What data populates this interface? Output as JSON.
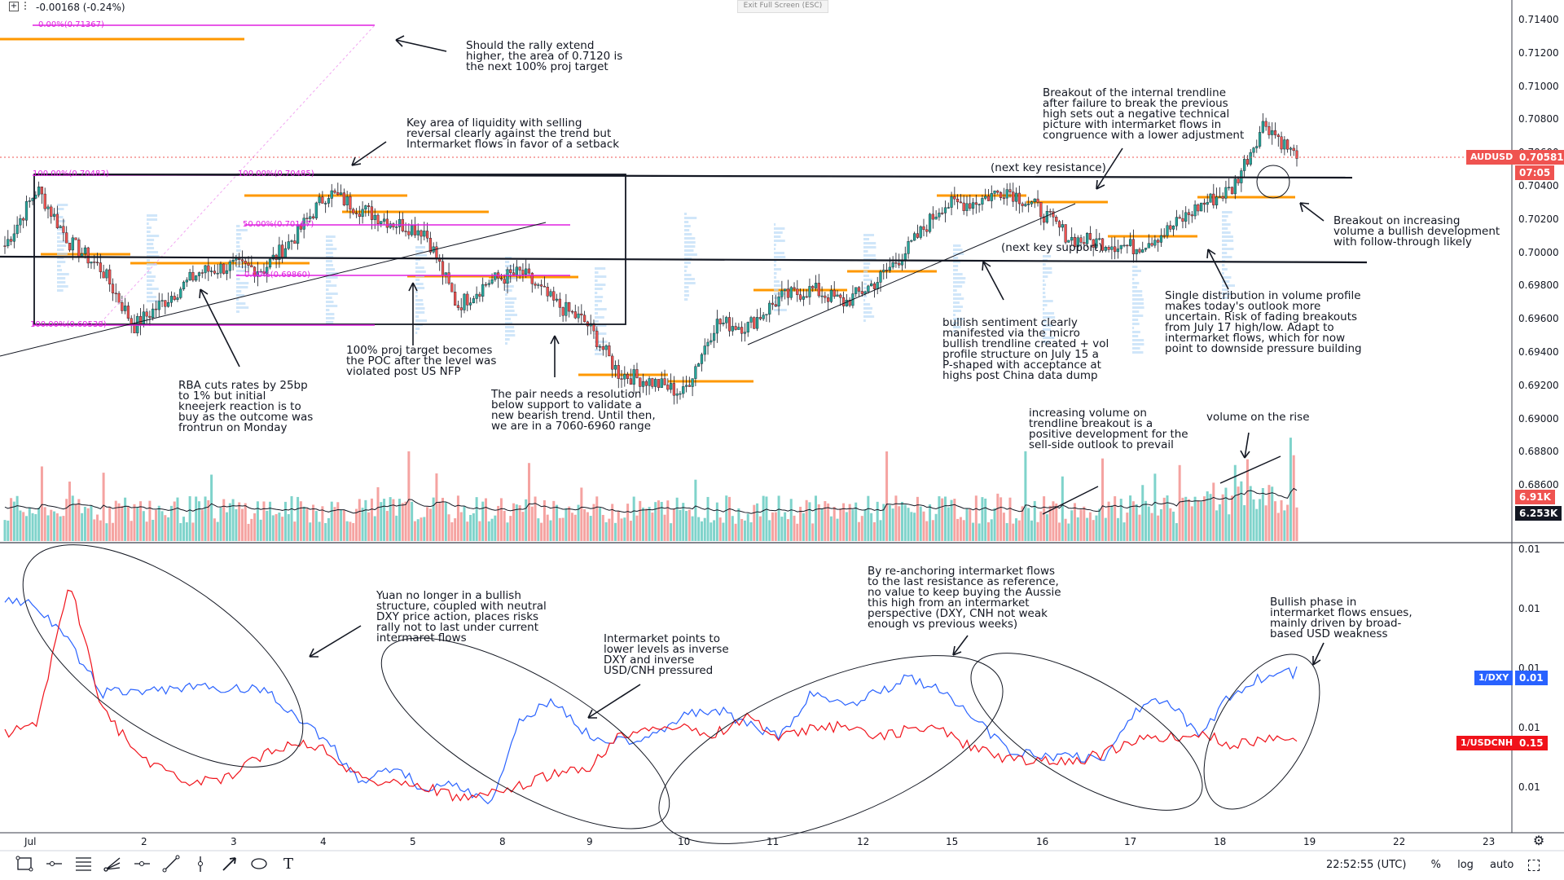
{
  "header": {
    "expand_icon": "plus-square-icon",
    "change_text": "-0.00168 (-0.24%)",
    "exit_fullscreen": "Exit Full Screen (ESC)"
  },
  "price_axis": {
    "ticks": [
      "0.71400",
      "0.71200",
      "0.71000",
      "0.70800",
      "0.70600",
      "0.70400",
      "0.70200",
      "0.70000",
      "0.69800",
      "0.69600",
      "0.69400",
      "0.69200",
      "0.69000",
      "0.68800",
      "0.68600"
    ],
    "last_price_label": "AUDUSD",
    "last_price": "0.70581",
    "countdown": "07:05",
    "volume_tag": "6.91K",
    "volume_ma_tag": "6.253K",
    "color_bull": "#26a69a",
    "color_bear": "#ef5350"
  },
  "lower_axis": {
    "ticks": [
      "0.01",
      "0.01",
      "0.01",
      "0.01",
      "0.01"
    ],
    "dxy_label": "1/DXY",
    "dxy_value": "0.01",
    "cnh_label": "1/USDCNH",
    "cnh_value": "0.15",
    "color_dxy": "#2962ff",
    "color_cnh": "#f0121a"
  },
  "time_axis": [
    "Jul",
    "2",
    "3",
    "4",
    "5",
    "8",
    "9",
    "10",
    "11",
    "12",
    "15",
    "16",
    "17",
    "18",
    "19",
    "22",
    "23"
  ],
  "fib_labels": {
    "upper_0": "0.00%(0.71367)",
    "range_100": "100.00%(0.70483)",
    "range_100_b": "100.00%(0.70485)",
    "range_50": "50.00%(0.70167)",
    "range_0": "0.00%(0.69860)",
    "range_bottom": "100.00%(0.69538)"
  },
  "labels": {
    "next_resistance": "(next key resistance)",
    "next_support": "(next key support)"
  },
  "annotations": {
    "rally": "Should the rally extend\nhigher, the area of 0.7120 is\nthe next 100% proj target",
    "liquidity": "Key area of liquidity with selling\nreversal clearly against the trend but\nIntermarket flows in favor of a setback",
    "breakout_trendline": "Breakout of the internal trendline\nafter failure to break the previous\nhigh sets out a negative technical\npicture with intermarket flows in\ncongruence with a lower adjustment",
    "breakout_volume": "Breakout on increasing\nvolume a bullish development\nwith follow-through likely",
    "single_distribution": "Single distribution in volume profile\nmakes today's outlook more\nuncertain. Risk of fading breakouts\nfrom July 17 high/low. Adapt to\nintermarket flows, which for now\npoint to downside pressure building",
    "bullish_sentiment": "bullish sentiment clearly\nmanifested via the micro\nbullish trendline created + vol\nprofile structure on July 15 a\nP-shaped with acceptance at\nhighs post China data dump",
    "proj_target": "100% proj target becomes\nthe POC after the level was\nviolated post US NFP",
    "rba": "RBA cuts rates by 25bp\nto 1% but initial\nkneejerk reaction is to\nbuy as the outcome was\nfrontrun on Monday",
    "resolution": "The pair needs a resolution\nbelow support to validate a\nnew bearish trend. Until then,\nwe are in a 7060-6960 range",
    "volume_trendline": "increasing volume on\ntrendline breakout is a\npositive development for the\nsell-side outlook to prevail",
    "volume_rise": "volume on the rise",
    "yuan": "Yuan no longer in a bullish\nstructure, coupled with neutral\nDXY price action, places risks\nrally not to last under current\nintermaret flows",
    "intermarket_lower": "Intermarket points to\nlower levels as inverse\nDXY and inverse\nUSD/CNH pressured",
    "reanchoring": "By re-anchoring intermarket flows\nto the last resistance as reference,\nno value to keep buying the Aussie\nthis high from an intermarket\nperspective (DXY, CNH not weak\nenough vs previous weeks)",
    "bullish_phase": "Bullish phase in\nintermarket flows ensues,\nmainly driven by broad-\nbased USD weakness"
  },
  "toolbar": {
    "tools": [
      "rectangle-tool-icon",
      "horizontal-ray-icon",
      "fib-retracement-icon",
      "pitchfork-icon",
      "horizontal-line-icon",
      "trend-line-icon",
      "vertical-line-icon",
      "arrow-line-icon",
      "ellipse-tool-icon",
      "text-tool-icon"
    ],
    "text_tool": "T"
  },
  "statusbar": {
    "clock": "22:52:55 (UTC)",
    "percent": "%",
    "log": "log",
    "auto": "auto",
    "settings_icon": "gear-icon"
  },
  "chart_data": {
    "type": "candlestick",
    "symbol": "AUDUSD",
    "price_range": [
      0.685,
      0.715
    ],
    "key_resistance": 0.7046,
    "key_support": 0.6994,
    "last": 0.70581,
    "session_dates": [
      "Jul",
      "2",
      "3",
      "4",
      "5",
      "8",
      "9",
      "10",
      "11",
      "12",
      "15",
      "16",
      "17",
      "18",
      "19"
    ],
    "close_path": [
      0.7006,
      0.704,
      0.7008,
      0.6992,
      0.6958,
      0.6974,
      0.699,
      0.6994,
      0.6992,
      0.7012,
      0.7038,
      0.7028,
      0.702,
      0.7015,
      0.697,
      0.6985,
      0.699,
      0.6972,
      0.696,
      0.693,
      0.6925,
      0.6918,
      0.696,
      0.6958,
      0.6975,
      0.698,
      0.6972,
      0.6985,
      0.7005,
      0.703,
      0.7032,
      0.704,
      0.7028,
      0.701,
      0.7008,
      0.7005,
      0.7015,
      0.703,
      0.704,
      0.708,
      0.7058
    ],
    "series_volume_note": "volume histogram with moving average",
    "lower_pane": {
      "series": [
        {
          "name": "1/DXY",
          "color": "#2962ff"
        },
        {
          "name": "1/USDCNH",
          "color": "#f0121a"
        }
      ]
    }
  }
}
